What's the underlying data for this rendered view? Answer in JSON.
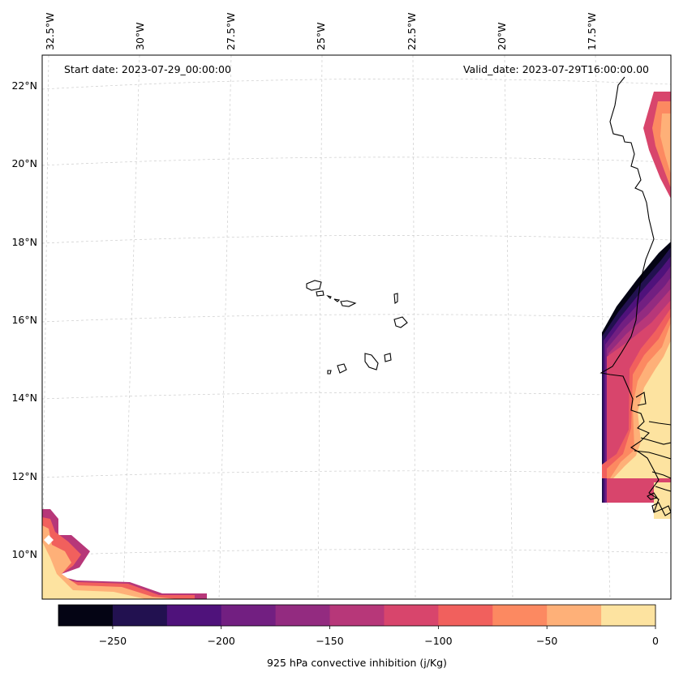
{
  "map": {
    "start_date_text": "Start date: 2023-07-29_00:00:00",
    "valid_date_text": "Valid_date: 2023-07-29T16:00:00.00",
    "lon_labels": [
      "32.5°W",
      "30°W",
      "27.5°W",
      "25°W",
      "22.5°W",
      "20°W",
      "17.5°W"
    ],
    "lat_labels": [
      "22°N",
      "20°N",
      "18°N",
      "16°N",
      "14°N",
      "12°N",
      "10°N"
    ],
    "gridlines": true
  },
  "colorbar": {
    "label": "925 hPa convective inhibition (j/Kg)",
    "ticks": [
      "−250",
      "−200",
      "−150",
      "−100",
      "−50",
      "0"
    ],
    "levels": [
      -275,
      -250,
      -225,
      -200,
      -175,
      -150,
      -125,
      -100,
      -75,
      -50,
      -25,
      0
    ],
    "colors": [
      "#040414",
      "#221150",
      "#4f127b",
      "#721f81",
      "#932b80",
      "#b73779",
      "#d8456c",
      "#f1605d",
      "#fc8961",
      "#feb078",
      "#fde3a0"
    ]
  }
}
